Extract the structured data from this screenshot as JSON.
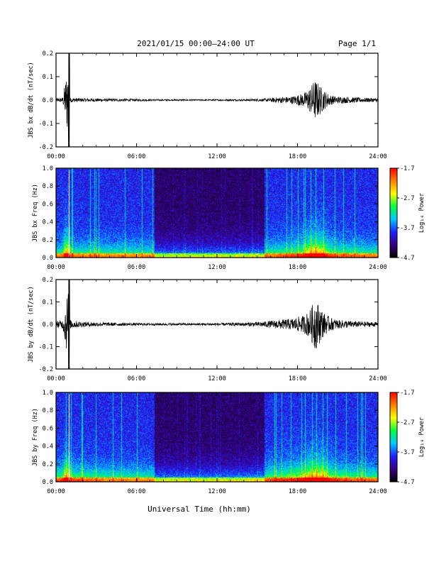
{
  "header": {
    "title": "2021/01/15  00:00–24:00 UT",
    "page": "Page 1/1"
  },
  "footer": {
    "xlabel": "Universal Time (hh:mm)"
  },
  "colorbar": {
    "label": "Log₁₀ Power",
    "ticks": [
      "-1.7",
      "-2.7",
      "-3.7",
      "-4.7"
    ],
    "tick_values": [
      -1.7,
      -2.7,
      -3.7,
      -4.7
    ],
    "range": [
      -4.7,
      -1.7
    ],
    "colors": [
      "#000000",
      "#3a0080",
      "#2020ff",
      "#00c8ff",
      "#00ff40",
      "#ffff00",
      "#ff8000",
      "#ff0000"
    ]
  },
  "chart_data": [
    {
      "type": "line",
      "ylabel": "JBS bx dB/dt (nT/sec)",
      "xlabel": "",
      "xlim": [
        "00:00",
        "24:00"
      ],
      "xlim_hours": [
        0,
        24
      ],
      "xticks": [
        "00:00",
        "06:00",
        "12:00",
        "18:00",
        "24:00"
      ],
      "ylim": [
        -0.2,
        0.2
      ],
      "yticks": [
        "-0.2",
        "-0.1",
        "0.0",
        "0.1",
        "0.2"
      ],
      "series": [
        {
          "x_hours": [
            0,
            0.5,
            1.0,
            1.02,
            2,
            4,
            6,
            8,
            10,
            12,
            14,
            15.5,
            16.5,
            17.5,
            18.5,
            19,
            19.3,
            19.6,
            20,
            20.5,
            21,
            22,
            23,
            24
          ],
          "amplitude": [
            0.008,
            0.01,
            0.2,
            0.01,
            0.008,
            0.006,
            0.005,
            0.003,
            0.003,
            0.003,
            0.004,
            0.006,
            0.012,
            0.015,
            0.03,
            0.06,
            0.09,
            0.07,
            0.04,
            0.02,
            0.015,
            0.012,
            0.01,
            0.008
          ]
        }
      ]
    },
    {
      "type": "heatmap",
      "ylabel": "JBS bx Freq (Hz)",
      "xlim": [
        "00:00",
        "24:00"
      ],
      "xticks": [
        "00:00",
        "06:00",
        "12:00",
        "18:00",
        "24:00"
      ],
      "ylim": [
        0.0,
        1.0
      ],
      "yticks": [
        "0.0",
        "0.2",
        "0.4",
        "0.6",
        "0.8",
        "1.0"
      ],
      "zlim": [
        -4.7,
        -1.7
      ],
      "quiet_interval_hours": [
        7.3,
        15.5
      ],
      "data_gap_hours": [
        0.92,
        1.0
      ]
    },
    {
      "type": "line",
      "ylabel": "JBS by dB/dt (nT/sec)",
      "xlabel": "",
      "xlim": [
        "00:00",
        "24:00"
      ],
      "xlim_hours": [
        0,
        24
      ],
      "xticks": [
        "00:00",
        "06:00",
        "12:00",
        "18:00",
        "24:00"
      ],
      "ylim": [
        -0.2,
        0.2
      ],
      "yticks": [
        "-0.2",
        "-0.1",
        "0.0",
        "0.1",
        "0.2"
      ],
      "series": [
        {
          "x_hours": [
            0,
            0.5,
            1.0,
            1.02,
            2,
            4,
            6,
            8,
            10,
            12,
            14,
            15.5,
            16.5,
            17.5,
            18.5,
            19,
            19.3,
            19.6,
            20,
            20.5,
            21,
            22,
            23,
            24
          ],
          "amplitude": [
            0.015,
            0.02,
            0.2,
            0.02,
            0.012,
            0.008,
            0.006,
            0.005,
            0.005,
            0.006,
            0.008,
            0.012,
            0.02,
            0.025,
            0.04,
            0.07,
            0.12,
            0.09,
            0.05,
            0.03,
            0.02,
            0.015,
            0.012,
            0.01
          ]
        }
      ]
    },
    {
      "type": "heatmap",
      "ylabel": "JBS by Freq (Hz)",
      "xlim": [
        "00:00",
        "24:00"
      ],
      "xticks": [
        "00:00",
        "06:00",
        "12:00",
        "18:00",
        "24:00"
      ],
      "ylim": [
        0.0,
        1.0
      ],
      "yticks": [
        "0.0",
        "0.2",
        "0.4",
        "0.6",
        "0.8",
        "1.0"
      ],
      "zlim": [
        -4.7,
        -1.7
      ],
      "quiet_interval_hours": [
        7.3,
        15.5
      ],
      "data_gap_hours": [
        0.92,
        1.0
      ]
    }
  ]
}
